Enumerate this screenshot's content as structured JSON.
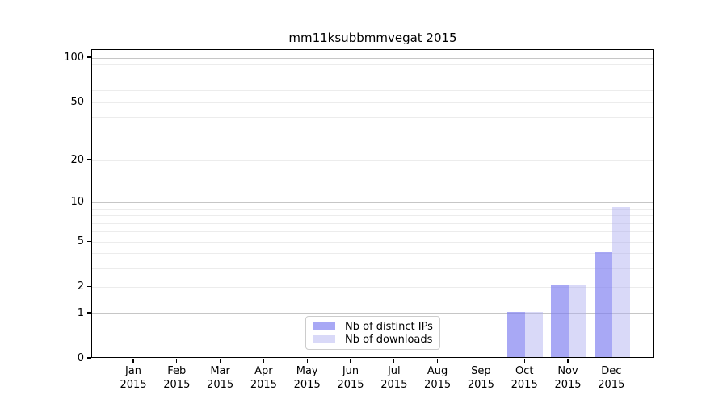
{
  "chart_data": {
    "type": "bar",
    "title": "mm11ksubbmmvegat 2015",
    "categories": [
      "Jan 2015",
      "Feb 2015",
      "Mar 2015",
      "Apr 2015",
      "May 2015",
      "Jun 2015",
      "Jul 2015",
      "Aug 2015",
      "Sep 2015",
      "Oct 2015",
      "Nov 2015",
      "Dec 2015"
    ],
    "series": [
      {
        "name": "Nb of distinct IPs",
        "color": "#7b7bf0",
        "alpha": 0.66,
        "values": [
          0,
          0,
          0,
          0,
          0,
          0,
          0,
          0,
          0,
          1,
          2,
          4
        ]
      },
      {
        "name": "Nb of downloads",
        "color": "#aaaaf0",
        "alpha": 0.45,
        "values": [
          0,
          0,
          0,
          0,
          0,
          0,
          0,
          0,
          0,
          1,
          2,
          9
        ]
      }
    ],
    "xlabel": "",
    "ylabel": "",
    "yscale": "log1p",
    "ylim": [
      0,
      110
    ],
    "yticks": [
      0,
      1,
      2,
      5,
      10,
      20,
      50,
      100
    ],
    "grid": {
      "orientation": "horizontal",
      "major_values": [
        1,
        10,
        100
      ],
      "minor_values": [
        2,
        3,
        4,
        5,
        6,
        7,
        8,
        9,
        20,
        30,
        40,
        50,
        60,
        70,
        80,
        90
      ],
      "major_color": "#c6c6c6",
      "minor_color": "#ececec"
    },
    "legend_position": "lower center"
  }
}
